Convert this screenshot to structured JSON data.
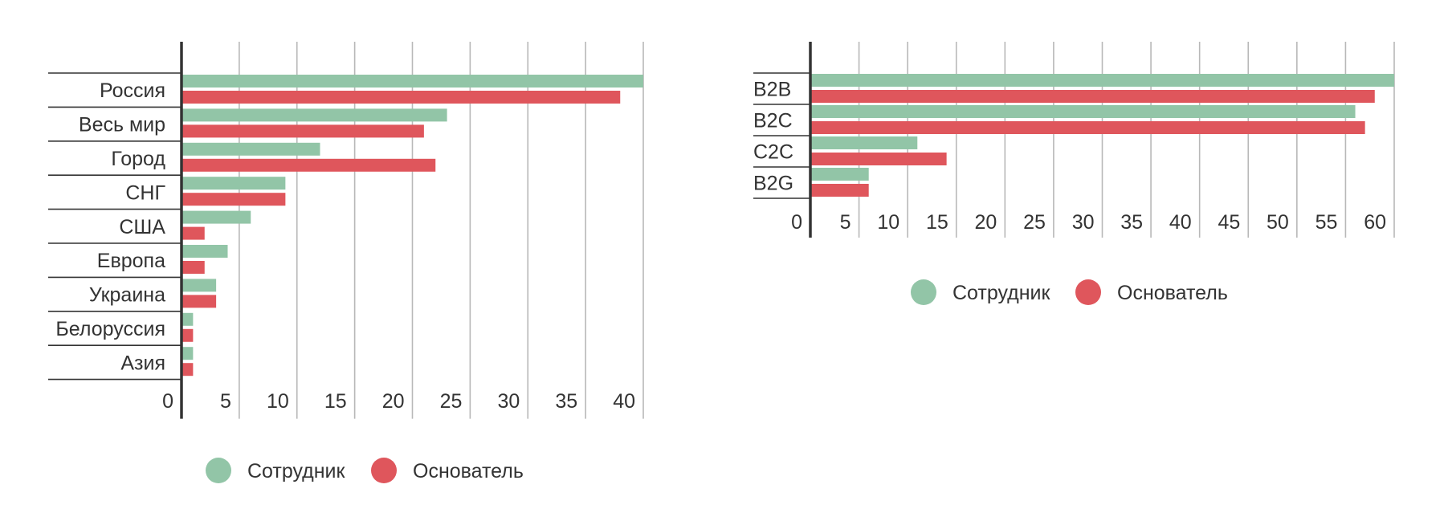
{
  "colors": {
    "employee": "#92c5a7",
    "founder": "#df565c",
    "grid": "#b8b8b8",
    "axis": "#333333",
    "text": "#333333"
  },
  "chart_data": [
    {
      "type": "bar",
      "orientation": "horizontal",
      "categories": [
        "Россия",
        "Весь мир",
        "Город",
        "СНГ",
        "США",
        "Европа",
        "Украина",
        "Белоруссия",
        "Азия"
      ],
      "series": [
        {
          "name": "Сотрудник",
          "values": [
            40,
            23,
            12,
            9,
            6,
            4,
            3,
            1,
            1
          ]
        },
        {
          "name": "Основатель",
          "values": [
            38,
            21,
            22,
            9,
            2,
            2,
            3,
            1,
            1
          ]
        }
      ],
      "xlim": [
        0,
        40
      ],
      "xticks": [
        0,
        5,
        10,
        15,
        20,
        25,
        30,
        35,
        40
      ],
      "xtick_labels": [
        "0",
        "5",
        "10",
        "15",
        "20",
        "25",
        "30",
        "35",
        "40"
      ],
      "grid": true,
      "legend_position": "bottom",
      "title": "",
      "xlabel": "",
      "ylabel": ""
    },
    {
      "type": "bar",
      "orientation": "horizontal",
      "categories": [
        "B2B",
        "B2C",
        "C2C",
        "B2G"
      ],
      "series": [
        {
          "name": "Сотрудник",
          "values": [
            60,
            56,
            11,
            6
          ]
        },
        {
          "name": "Основатель",
          "values": [
            58,
            57,
            14,
            6
          ]
        }
      ],
      "xlim": [
        0,
        60
      ],
      "xticks": [
        0,
        5,
        10,
        15,
        20,
        25,
        30,
        35,
        40,
        45,
        50,
        55,
        60
      ],
      "xtick_labels": [
        "0",
        "5",
        "10",
        "15",
        "20",
        "25",
        "30",
        "35",
        "40",
        "45",
        "50",
        "55",
        "60"
      ],
      "grid": true,
      "legend_position": "bottom",
      "title": "",
      "xlabel": "",
      "ylabel": ""
    }
  ]
}
